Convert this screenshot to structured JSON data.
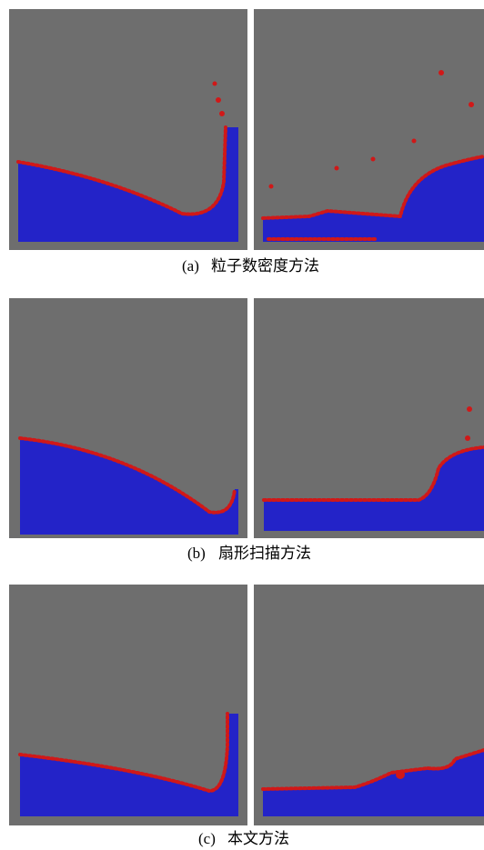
{
  "figure": {
    "subfigures": [
      {
        "label": "(a)",
        "caption": "粒子数密度方法"
      },
      {
        "label": "(b)",
        "caption": "扇形扫描方法"
      },
      {
        "label": "(c)",
        "caption": "本文方法"
      }
    ]
  }
}
